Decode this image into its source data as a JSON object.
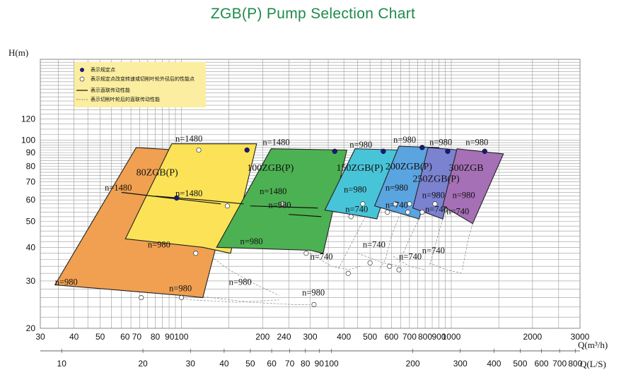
{
  "title": "ZGB(P)  Pump Selection Chart",
  "chart_data": {
    "type": "area",
    "title": "ZGB(P)  Pump Selection Chart",
    "ylabel": "H(m)",
    "xlabel": "Q(m³/h)",
    "x2label": "Q(L/S)",
    "y_scale": "log",
    "x_scale": "log",
    "ylim": [
      20,
      200
    ],
    "xlim": [
      30,
      3000
    ],
    "grid": true,
    "y_ticks": [
      20,
      30,
      40,
      50,
      60,
      70,
      80,
      90,
      100,
      120
    ],
    "x_ticks_m3h": [
      30,
      40,
      50,
      60,
      70,
      80,
      90,
      100,
      200,
      240,
      300,
      400,
      500,
      600,
      700,
      800,
      900,
      1000,
      2000,
      3000
    ],
    "x_tick_labels_m3h": [
      "30",
      "40",
      "50",
      "60 70",
      "80",
      "90100",
      "200",
      "240",
      "300",
      "400",
      "500",
      "600",
      "700",
      "800",
      "900",
      "1000",
      "2000",
      "3000"
    ],
    "x_ticks_ls": [
      10,
      20,
      30,
      40,
      50,
      60,
      70,
      80,
      90,
      100,
      200,
      300,
      400,
      500,
      600,
      700,
      800
    ],
    "x_tick_labels_ls": [
      "10",
      "20",
      "30",
      "40",
      "50",
      "60",
      "70",
      "80",
      "90",
      "100",
      "200",
      "300",
      "400",
      "500",
      "600",
      "700",
      "800"
    ],
    "legend": {
      "placement": "top-left",
      "items": [
        {
          "symbol": "filled-dot",
          "text": "表示规定点"
        },
        {
          "symbol": "open-dot",
          "text": "表示规定点改变转速或切削叶轮外径后的性能点"
        },
        {
          "symbol": "solid-line",
          "text": "表示直联传动性能"
        },
        {
          "symbol": "dashed-line",
          "text": "表示切削叶轮后的直联传动性能"
        }
      ]
    },
    "series": [
      {
        "name": "80ZGB(P)",
        "color": "#f0a050",
        "speed_labels": [
          "n=1480",
          "n=980"
        ],
        "polygon": [
          [
            34,
            29
          ],
          [
            68,
            94
          ],
          [
            165,
            89
          ],
          [
            120,
            26
          ],
          [
            100,
            26.5
          ]
        ]
      },
      {
        "name": "80ZGB(P)",
        "color": "#fbe257",
        "speed_labels": [
          "n=1480",
          "n=1480",
          "n=980"
        ],
        "polygon": [
          [
            62,
            43
          ],
          [
            92,
            97
          ],
          [
            190,
            97
          ],
          [
            152,
            38
          ],
          [
            120,
            40
          ]
        ]
      },
      {
        "name": "100ZGB(P)",
        "color": "#4cb152",
        "speed_labels": [
          "n=1480",
          "n=1480",
          "n=980",
          "n=980"
        ],
        "polygon": [
          [
            135,
            40
          ],
          [
            215,
            93
          ],
          [
            410,
            92
          ],
          [
            335,
            38
          ],
          [
            300,
            39
          ]
        ]
      },
      {
        "name": "150ZGB(P)",
        "color": "#48c4d8",
        "speed_labels": [
          "n=980",
          "n=980",
          "n=740"
        ],
        "polygon": [
          [
            340,
            55
          ],
          [
            440,
            93
          ],
          [
            640,
            92
          ],
          [
            530,
            51
          ],
          [
            480,
            52
          ]
        ]
      },
      {
        "name": "200ZGB(P)",
        "color": "#5aa4e0",
        "speed_labels": [
          "n=980",
          "n=980",
          "n=740"
        ],
        "polygon": [
          [
            520,
            57
          ],
          [
            640,
            95
          ],
          [
            900,
            94
          ],
          [
            760,
            51
          ]
        ]
      },
      {
        "name": "250ZGB(P)",
        "color": "#7b82d0",
        "speed_labels": [
          "n=980",
          "n=980",
          "n=740"
        ],
        "polygon": [
          [
            720,
            56
          ],
          [
            820,
            94
          ],
          [
            1070,
            92
          ],
          [
            930,
            51
          ]
        ]
      },
      {
        "name": "300ZGB",
        "color": "#a570b6",
        "speed_labels": [
          "n=980",
          "n=980",
          "n=740"
        ],
        "polygon": [
          [
            930,
            57
          ],
          [
            1050,
            93
          ],
          [
            1560,
            89
          ],
          [
            1200,
            49
          ]
        ]
      }
    ],
    "dashed_labels": [
      "n=980",
      "n=980",
      "n=980",
      "n=740",
      "n=740",
      "n=740",
      "n=740"
    ]
  }
}
